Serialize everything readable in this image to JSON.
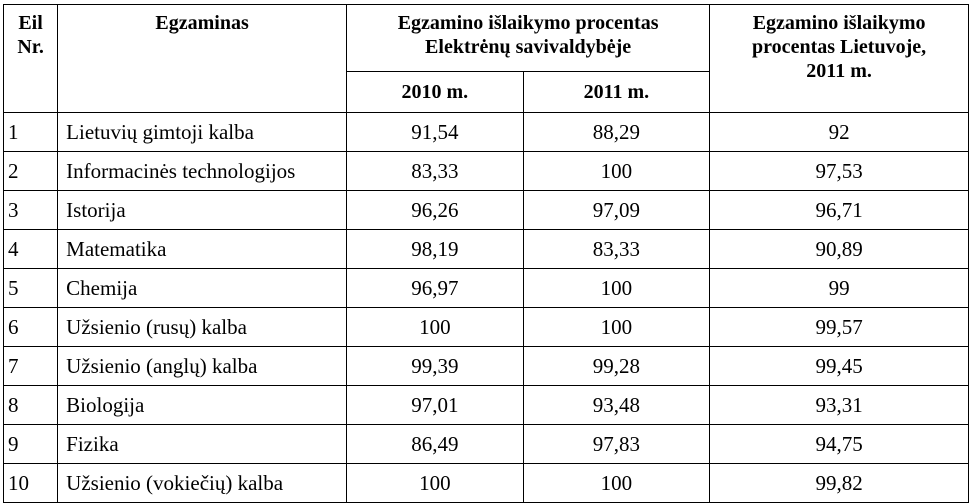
{
  "headers": {
    "nr": "Eil\nNr.",
    "exam": "Egzaminas",
    "municipality": "Egzamino išlaikymo procentas Elektrėnų savivaldybėje",
    "lithuania": "Egzamino išlaikymo procentas Lietuvoje, 2011 m.",
    "year2010": "2010 m.",
    "year2011": "2011 m."
  },
  "rows": [
    {
      "nr": "1",
      "exam": "Lietuvių gimtoji kalba",
      "v2010": "91,54",
      "v2011": "88,29",
      "lt": "92"
    },
    {
      "nr": "2",
      "exam": "Informacinės technologijos",
      "v2010": "83,33",
      "v2011": "100",
      "lt": "97,53"
    },
    {
      "nr": "3",
      "exam": "Istorija",
      "v2010": "96,26",
      "v2011": "97,09",
      "lt": "96,71"
    },
    {
      "nr": "4",
      "exam": "Matematika",
      "v2010": "98,19",
      "v2011": "83,33",
      "lt": "90,89"
    },
    {
      "nr": "5",
      "exam": "Chemija",
      "v2010": "96,97",
      "v2011": "100",
      "lt": "99"
    },
    {
      "nr": "6",
      "exam": "Užsienio (rusų) kalba",
      "v2010": "100",
      "v2011": "100",
      "lt": "99,57"
    },
    {
      "nr": "7",
      "exam": "Užsienio (anglų) kalba",
      "v2010": "99,39",
      "v2011": "99,28",
      "lt": "99,45"
    },
    {
      "nr": "8",
      "exam": "Biologija",
      "v2010": "97,01",
      "v2011": "93,48",
      "lt": "93,31"
    },
    {
      "nr": "9",
      "exam": "Fizika",
      "v2010": "86,49",
      "v2011": "97,83",
      "lt": "94,75"
    },
    {
      "nr": "10",
      "exam": "Užsienio (vokiečių) kalba",
      "v2010": "100",
      "v2011": "100",
      "lt": "99,82"
    }
  ]
}
